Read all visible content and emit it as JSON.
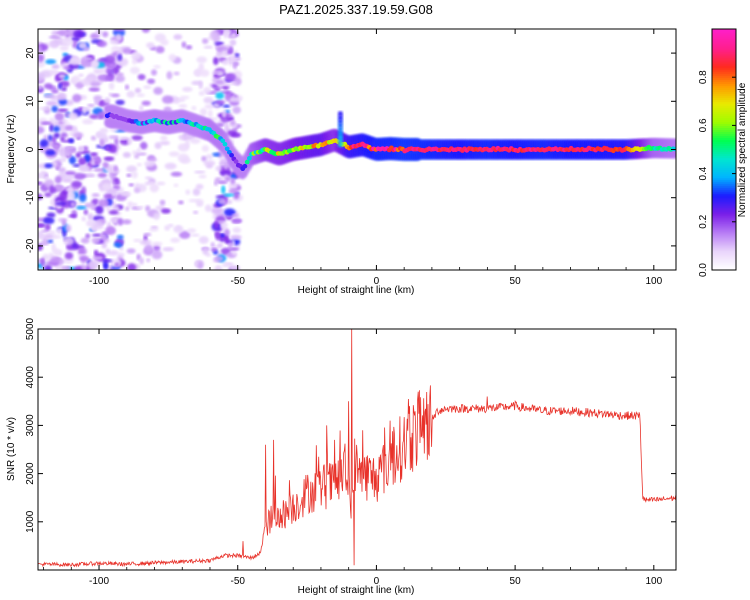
{
  "title": "PAZ1.2025.337.19.59.G08",
  "chart_data": [
    {
      "type": "heatmap",
      "xlabel": "Height of straight line (km)",
      "ylabel": "Frequency (Hz)",
      "xlim": [
        -122,
        108
      ],
      "ylim": [
        -25,
        25
      ],
      "x_ticks": [
        -100,
        -50,
        0,
        50,
        100
      ],
      "y_ticks": [
        -20,
        -10,
        0,
        10,
        20
      ],
      "colorbar": {
        "label": "Normalized spectral amplitude",
        "range": [
          0,
          1
        ],
        "ticks": [
          0.0,
          0.2,
          0.4,
          0.6,
          0.8
        ],
        "tick_labels": [
          "0.0",
          "0.2",
          "0.4",
          "0.6",
          "0.8"
        ],
        "colors": [
          "#ffffff",
          "#e9d4fb",
          "#b77cf5",
          "#7b1fe8",
          "#1c1cff",
          "#00b4ff",
          "#00e6d0",
          "#00ff52",
          "#9ffc00",
          "#e8ea00",
          "#ff9900",
          "#ff2b1e",
          "#ff1f8c",
          "#ff1fc6"
        ]
      },
      "ridge": {
        "x": [
          -95,
          -90,
          -85,
          -80,
          -75,
          -70,
          -65,
          -60,
          -55,
          -52,
          -50,
          -48,
          -45,
          -40,
          -35,
          -30,
          -25,
          -20,
          -15,
          -10,
          -5,
          0,
          5,
          10,
          20,
          30,
          40,
          50,
          60,
          70,
          80,
          90,
          100,
          108
        ],
        "y": [
          7,
          6,
          5.5,
          6,
          5.5,
          6,
          5,
          4,
          1.5,
          -1.5,
          -3,
          -4,
          -1,
          0,
          -1,
          0,
          0.5,
          1,
          2,
          0.5,
          1,
          0,
          0.2,
          0,
          0,
          0,
          0,
          0,
          0,
          0,
          0,
          0,
          0.3,
          0.2
        ],
        "amplitude": [
          0.22,
          0.25,
          0.3,
          0.35,
          0.4,
          0.4,
          0.42,
          0.45,
          0.45,
          0.35,
          0.3,
          0.35,
          0.5,
          0.6,
          0.62,
          0.65,
          0.7,
          0.72,
          0.6,
          0.8,
          0.85,
          0.9,
          0.9,
          0.92,
          0.9,
          0.88,
          0.9,
          0.88,
          0.9,
          0.88,
          0.88,
          0.85,
          0.5,
          0.45
        ]
      }
    },
    {
      "type": "line",
      "xlabel": "Height of straight line (km)",
      "ylabel": "SNR (10 * v/v)",
      "xlim": [
        -122,
        108
      ],
      "ylim": [
        0,
        5000
      ],
      "x_ticks": [
        -100,
        -50,
        0,
        50,
        100
      ],
      "y_ticks": [
        1000,
        2000,
        3000,
        4000,
        5000
      ],
      "color": "#e8322a",
      "series": [
        {
          "name": "SNR",
          "x": [
            -122,
            -110,
            -100,
            -90,
            -80,
            -70,
            -60,
            -55,
            -50,
            -45,
            -42,
            -40,
            -38,
            -35,
            -30,
            -25,
            -20,
            -15,
            -12,
            -10,
            -9,
            -8,
            -5,
            0,
            5,
            10,
            15,
            20,
            22,
            25,
            30,
            40,
            50,
            60,
            70,
            80,
            90,
            95,
            96,
            97,
            100,
            108
          ],
          "y": [
            120,
            110,
            140,
            120,
            150,
            170,
            200,
            300,
            300,
            250,
            350,
            900,
            1050,
            1100,
            1300,
            1600,
            1700,
            1800,
            2000,
            1900,
            1000,
            2200,
            2000,
            1900,
            2300,
            2600,
            2900,
            3100,
            3300,
            3350,
            3350,
            3350,
            3400,
            3300,
            3300,
            3250,
            3200,
            3200,
            1500,
            1450,
            1450,
            1500
          ]
        }
      ],
      "spikes": [
        {
          "x": -48,
          "y": 600
        },
        {
          "x": -40,
          "y": 2600
        },
        {
          "x": -37,
          "y": 2700
        },
        {
          "x": -18,
          "y": 3000
        },
        {
          "x": -15,
          "y": 2700
        },
        {
          "x": -10,
          "y": 3500
        },
        {
          "x": -9,
          "y": 5050
        },
        {
          "x": -8,
          "y": 100
        },
        {
          "x": -5,
          "y": 2900
        },
        {
          "x": 5,
          "y": 3100
        },
        {
          "x": 12,
          "y": 3400
        },
        {
          "x": 15,
          "y": 3700
        },
        {
          "x": 40,
          "y": 3600
        },
        {
          "x": 50,
          "y": 3500
        }
      ]
    }
  ]
}
